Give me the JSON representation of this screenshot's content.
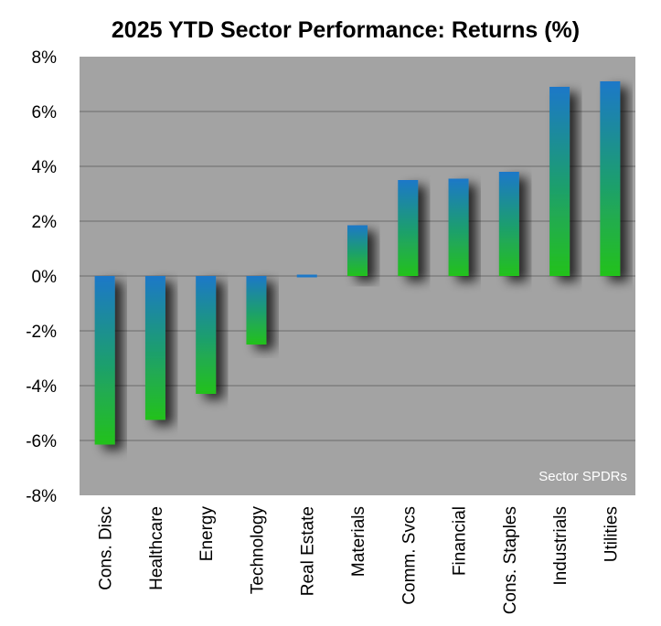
{
  "chart_data": {
    "type": "bar",
    "title": "2025 YTD Sector Performance: Returns (%)",
    "xlabel": "",
    "ylabel": "",
    "ylim": [
      -8,
      8
    ],
    "ytick_values": [
      8,
      6,
      4,
      2,
      0,
      -2,
      -4,
      -6,
      -8
    ],
    "ytick_labels": [
      "8%",
      "6%",
      "4%",
      "2%",
      "0%",
      "-2%",
      "-4%",
      "-6%",
      "-8%"
    ],
    "grid": true,
    "categories": [
      "Cons. Disc",
      "Healthcare",
      "Energy",
      "Technology",
      "Real Estate",
      "Materials",
      "Comm. Svcs",
      "Financial",
      "Cons. Staples",
      "Industrials",
      "Utilities"
    ],
    "values": [
      -6.15,
      -5.25,
      -4.3,
      -2.5,
      -0.05,
      1.85,
      3.5,
      3.55,
      3.8,
      6.9,
      7.1
    ],
    "annotation": "Sector SPDRs",
    "colors": {
      "plot_bg": "#a3a3a3",
      "grid": "#6b6b6b",
      "bar_top": "#1a78c8",
      "bar_bottom": "#23c21b",
      "annotation": "#ffffff"
    }
  }
}
